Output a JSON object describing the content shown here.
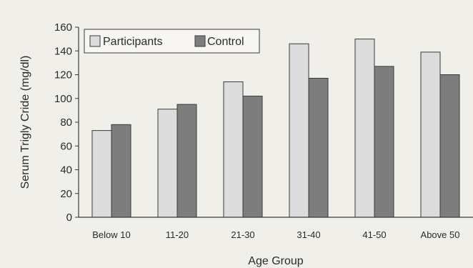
{
  "chart_data": {
    "type": "bar",
    "title": "",
    "xlabel": "Age Group",
    "ylabel": "Serum Trigly Cride (mg/dl)",
    "ylim": [
      0,
      160
    ],
    "yticks": [
      0,
      20,
      40,
      60,
      80,
      100,
      120,
      140,
      160
    ],
    "grid": false,
    "legend_position": "top-left",
    "categories": [
      "Below 10",
      "11-20",
      "21-30",
      "31-40",
      "41-50",
      "Above 50"
    ],
    "series": [
      {
        "name": "Participants",
        "color": "#dcdcdc",
        "values": [
          73,
          91,
          114,
          146,
          150,
          139
        ]
      },
      {
        "name": "Control",
        "color": "#7d7d7d",
        "values": [
          78,
          95,
          102,
          117,
          127,
          120
        ]
      }
    ]
  }
}
